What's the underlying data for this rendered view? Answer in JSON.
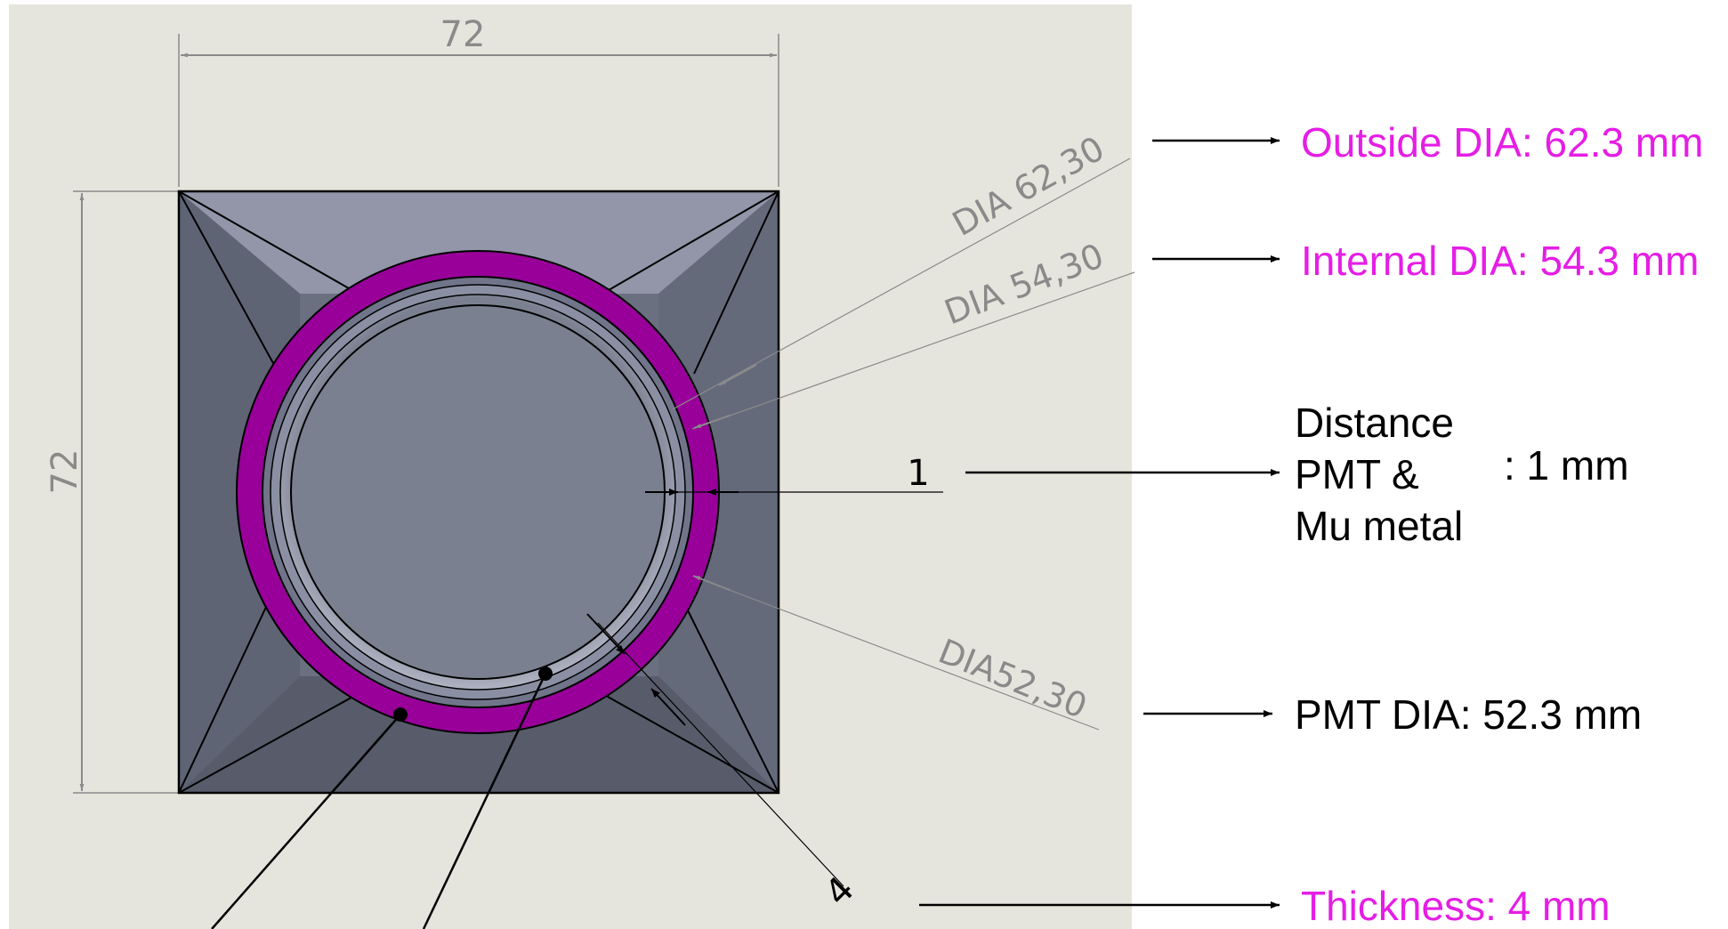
{
  "drawing": {
    "dim_top": "72",
    "dim_left": "72",
    "dim_dia_outer": "DIA 62,30",
    "dim_dia_inner": "DIA 54,30",
    "dim_dia_pmt": "DIA52,30",
    "dim_gap": "1",
    "dim_thickness": "4"
  },
  "annotations": {
    "outside_dia": "Outside DIA: 62.3 mm",
    "internal_dia": "Internal DIA: 54.3 mm",
    "distance_line1": "Distance",
    "distance_line2": "PMT &",
    "distance_line3": "Mu metal",
    "distance_value": ": 1 mm",
    "pmt_dia": "PMT DIA: 52.3 mm",
    "thickness": "Thickness: 4 mm"
  },
  "colors": {
    "sheet": "#e6e5dd",
    "ring": "#990099",
    "highlight_text": "#e51ee5",
    "part_dark": "#5f6474",
    "part_mid": "#7a7f90",
    "part_light": "#9a9eae",
    "dimension_gray": "#8a8a8a"
  }
}
